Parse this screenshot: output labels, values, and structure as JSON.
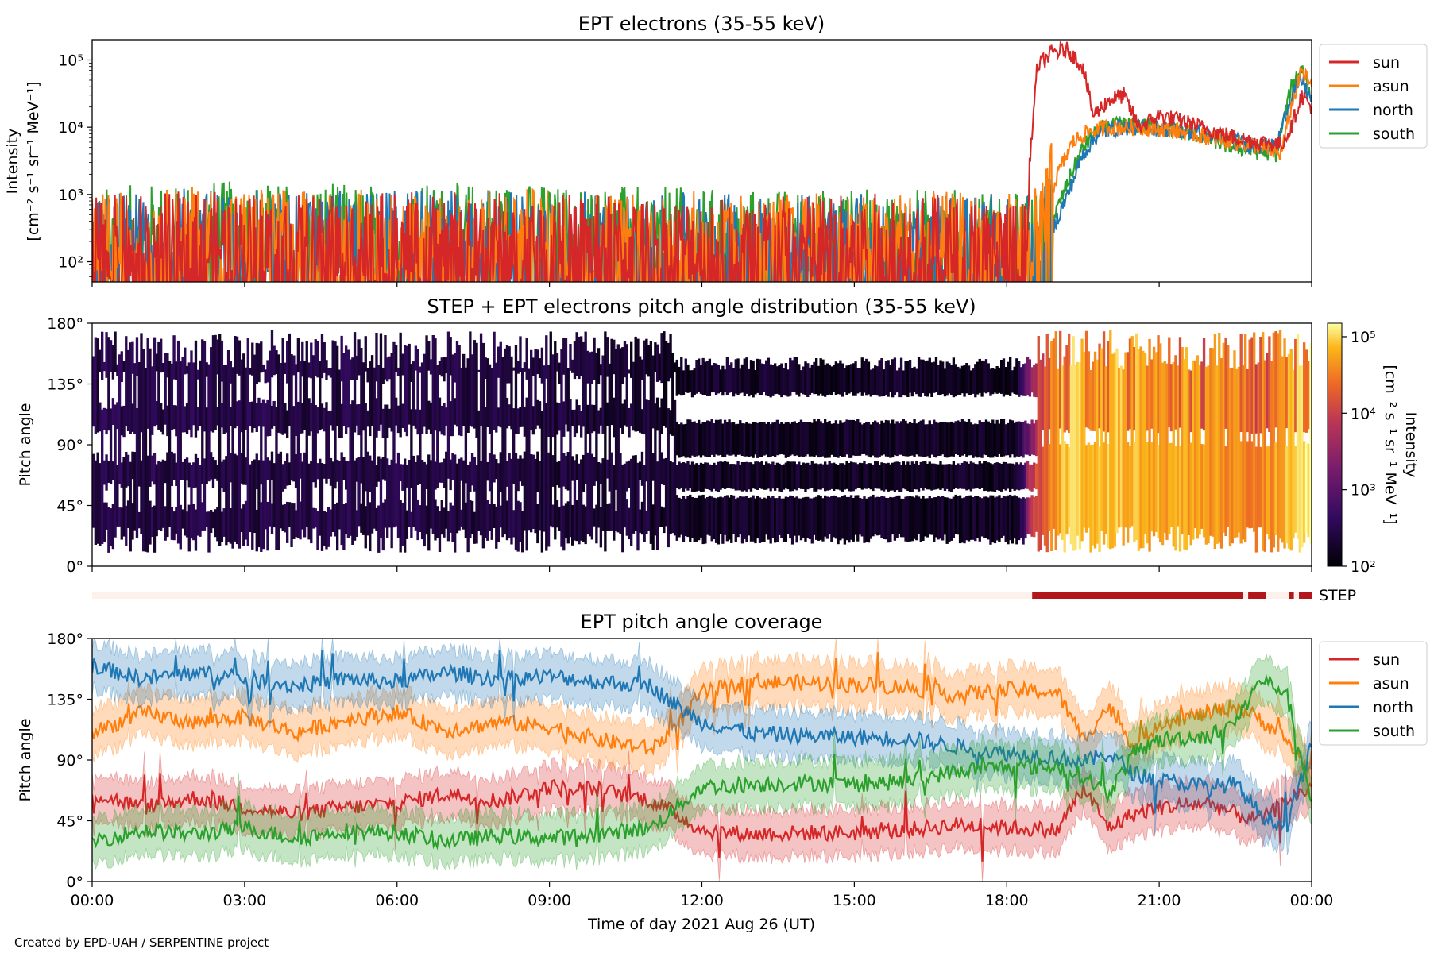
{
  "footer_credit": "Created by EPD-UAH / SERPENTINE project",
  "colors": {
    "sun": "#d62728",
    "asun": "#ff7f0e",
    "north": "#1f77b4",
    "south": "#2ca02c",
    "step_bar_on": "#b2181b",
    "step_bar_off": "#fdf1ec"
  },
  "chart_data": [
    {
      "type": "line",
      "title": "EPT electrons (35-55 keV)",
      "ylabel_line1": "Intensity",
      "ylabel_line2": "[cm⁻² s⁻¹ sr⁻¹ MeV⁻¹]",
      "yscale": "log",
      "ylim": [
        50,
        200000
      ],
      "yticks": [
        {
          "value": 100,
          "label": "10²"
        },
        {
          "value": 1000,
          "label": "10³"
        },
        {
          "value": 10000,
          "label": "10⁴"
        },
        {
          "value": 100000,
          "label": "10⁵"
        }
      ],
      "xlim_hours": [
        0,
        24
      ],
      "legend_position": "right",
      "legend": [
        "sun",
        "asun",
        "north",
        "south"
      ],
      "series": [
        {
          "name": "sun",
          "color": "#d62728",
          "points": [
            [
              0,
              150
            ],
            [
              2,
              180
            ],
            [
              4,
              160
            ],
            [
              6,
              170
            ],
            [
              8,
              180
            ],
            [
              10,
              160
            ],
            [
              12,
              150
            ],
            [
              14,
              160
            ],
            [
              16,
              170
            ],
            [
              18,
              140
            ],
            [
              18.4,
              130
            ],
            [
              18.45,
              3000
            ],
            [
              18.6,
              80000
            ],
            [
              18.9,
              130000
            ],
            [
              19.2,
              140000
            ],
            [
              19.5,
              80000
            ],
            [
              19.7,
              15000
            ],
            [
              20,
              25000
            ],
            [
              20.3,
              30000
            ],
            [
              20.6,
              10000
            ],
            [
              21,
              15000
            ],
            [
              21.5,
              12000
            ],
            [
              22,
              9000
            ],
            [
              22.5,
              7000
            ],
            [
              23,
              6000
            ],
            [
              23.4,
              5500
            ],
            [
              23.6,
              10000
            ],
            [
              23.8,
              30000
            ],
            [
              24,
              20000
            ]
          ]
        },
        {
          "name": "asun",
          "color": "#ff7f0e",
          "points": [
            [
              0,
              170
            ],
            [
              2,
              210
            ],
            [
              4,
              200
            ],
            [
              6,
              190
            ],
            [
              8,
              200
            ],
            [
              10,
              190
            ],
            [
              12,
              180
            ],
            [
              14,
              170
            ],
            [
              16,
              180
            ],
            [
              18,
              170
            ],
            [
              18.5,
              160
            ],
            [
              18.8,
              600
            ],
            [
              19,
              2000
            ],
            [
              19.3,
              6000
            ],
            [
              19.6,
              8500
            ],
            [
              20,
              10000
            ],
            [
              20.5,
              10000
            ],
            [
              21,
              9500
            ],
            [
              21.5,
              8500
            ],
            [
              22,
              7000
            ],
            [
              22.5,
              6000
            ],
            [
              23,
              5000
            ],
            [
              23.4,
              4000
            ],
            [
              23.6,
              20000
            ],
            [
              23.8,
              70000
            ],
            [
              24,
              40000
            ]
          ]
        },
        {
          "name": "north",
          "color": "#1f77b4",
          "points": [
            [
              0,
              160
            ],
            [
              2,
              200
            ],
            [
              4,
              190
            ],
            [
              6,
              180
            ],
            [
              8,
              190
            ],
            [
              10,
              180
            ],
            [
              12,
              170
            ],
            [
              14,
              165
            ],
            [
              16,
              170
            ],
            [
              18,
              160
            ],
            [
              18.6,
              150
            ],
            [
              18.9,
              300
            ],
            [
              19.2,
              1000
            ],
            [
              19.5,
              4000
            ],
            [
              19.8,
              8000
            ],
            [
              20.2,
              10000
            ],
            [
              20.8,
              10000
            ],
            [
              21.3,
              9000
            ],
            [
              21.8,
              8000
            ],
            [
              22.3,
              6500
            ],
            [
              22.8,
              5500
            ],
            [
              23.3,
              5000
            ],
            [
              23.6,
              30000
            ],
            [
              23.8,
              50000
            ],
            [
              24,
              25000
            ]
          ]
        },
        {
          "name": "south",
          "color": "#2ca02c",
          "points": [
            [
              0,
              200
            ],
            [
              2,
              260
            ],
            [
              4,
              240
            ],
            [
              6,
              230
            ],
            [
              8,
              240
            ],
            [
              10,
              220
            ],
            [
              12,
              200
            ],
            [
              14,
              190
            ],
            [
              16,
              200
            ],
            [
              18,
              190
            ],
            [
              18.6,
              170
            ],
            [
              18.9,
              400
            ],
            [
              19.2,
              1500
            ],
            [
              19.5,
              5000
            ],
            [
              19.8,
              9000
            ],
            [
              20.2,
              11000
            ],
            [
              20.8,
              10500
            ],
            [
              21.3,
              9000
            ],
            [
              21.8,
              7500
            ],
            [
              22.3,
              5500
            ],
            [
              22.8,
              4500
            ],
            [
              23.3,
              4000
            ],
            [
              23.6,
              40000
            ],
            [
              23.8,
              80000
            ],
            [
              24,
              30000
            ]
          ]
        }
      ]
    },
    {
      "type": "heatmap",
      "title": "STEP + EPT electrons pitch angle distribution (35-55 keV)",
      "ylabel": "Pitch angle",
      "ylim": [
        0,
        180
      ],
      "yticks": [
        "0°",
        "45°",
        "90°",
        "135°",
        "180°"
      ],
      "xlim_hours": [
        0,
        24
      ],
      "colorbar": {
        "scale": "log",
        "range": [
          100,
          150000
        ],
        "ticks": [
          {
            "value": 100,
            "label": "10²"
          },
          {
            "value": 1000,
            "label": "10³"
          },
          {
            "value": 10000,
            "label": "10⁴"
          },
          {
            "value": 100000,
            "label": "10⁵"
          }
        ],
        "label_line1": "Intensity",
        "label_line2": "[cm⁻² s⁻¹ sr⁻¹ MeV⁻¹]",
        "colormap": "inferno"
      },
      "intensity_profile_hours": [
        [
          0,
          300
        ],
        [
          4,
          280
        ],
        [
          8,
          250
        ],
        [
          10,
          230
        ],
        [
          11.5,
          180
        ],
        [
          14,
          170
        ],
        [
          18.2,
          160
        ],
        [
          18.5,
          3000
        ],
        [
          19,
          20000
        ],
        [
          19.5,
          30000
        ],
        [
          20,
          25000
        ],
        [
          21,
          20000
        ],
        [
          22,
          15000
        ],
        [
          23,
          12000
        ],
        [
          24,
          40000
        ]
      ]
    },
    {
      "type": "bar",
      "label": "STEP",
      "step_on_intervals_hours": [
        [
          18.5,
          22.65
        ],
        [
          22.75,
          23.1
        ],
        [
          23.55,
          23.65
        ],
        [
          23.75,
          24
        ]
      ],
      "xlim_hours": [
        0,
        24
      ]
    },
    {
      "type": "line",
      "title": "EPT pitch angle coverage",
      "ylabel": "Pitch angle",
      "ylim": [
        0,
        180
      ],
      "yticks": [
        "0°",
        "45°",
        "90°",
        "135°",
        "180°"
      ],
      "xticks": [
        "00:00",
        "03:00",
        "06:00",
        "09:00",
        "12:00",
        "15:00",
        "18:00",
        "21:00",
        "00:00"
      ],
      "xlabel": "Time of day 2021 Aug 26 (UT)",
      "legend_position": "right",
      "legend": [
        "sun",
        "asun",
        "north",
        "south"
      ],
      "series": [
        {
          "name": "sun",
          "color": "#d62728",
          "points": [
            [
              0,
              65
            ],
            [
              1,
              55
            ],
            [
              2,
              62
            ],
            [
              3,
              55
            ],
            [
              4,
              50
            ],
            [
              5,
              55
            ],
            [
              6,
              58
            ],
            [
              7,
              65
            ],
            [
              8,
              60
            ],
            [
              9,
              70
            ],
            [
              10,
              68
            ],
            [
              11,
              60
            ],
            [
              11.5,
              50
            ],
            [
              12,
              38
            ],
            [
              13,
              35
            ],
            [
              14,
              36
            ],
            [
              15,
              36
            ],
            [
              16,
              38
            ],
            [
              17,
              42
            ],
            [
              18,
              40
            ],
            [
              19,
              38
            ],
            [
              19.5,
              70
            ],
            [
              20,
              40
            ],
            [
              20.5,
              50
            ],
            [
              21,
              55
            ],
            [
              22,
              58
            ],
            [
              22.5,
              50
            ],
            [
              23,
              45
            ],
            [
              23.5,
              60
            ],
            [
              24,
              70
            ]
          ]
        },
        {
          "name": "asun",
          "color": "#ff7f0e",
          "points": [
            [
              0,
              110
            ],
            [
              1,
              125
            ],
            [
              2,
              118
            ],
            [
              3,
              122
            ],
            [
              4,
              110
            ],
            [
              5,
              120
            ],
            [
              6,
              125
            ],
            [
              7,
              112
            ],
            [
              8,
              118
            ],
            [
              9,
              115
            ],
            [
              10,
              105
            ],
            [
              11,
              98
            ],
            [
              11.5,
              115
            ],
            [
              12,
              140
            ],
            [
              13,
              148
            ],
            [
              14,
              147
            ],
            [
              15,
              146
            ],
            [
              16,
              144
            ],
            [
              17,
              138
            ],
            [
              18,
              142
            ],
            [
              19,
              140
            ],
            [
              19.5,
              105
            ],
            [
              20,
              130
            ],
            [
              20.5,
              100
            ],
            [
              21,
              118
            ],
            [
              22,
              125
            ],
            [
              22.5,
              130
            ],
            [
              23,
              120
            ],
            [
              23.5,
              105
            ],
            [
              24,
              80
            ]
          ]
        },
        {
          "name": "north",
          "color": "#1f77b4",
          "points": [
            [
              0,
              160
            ],
            [
              1,
              150
            ],
            [
              2,
              155
            ],
            [
              3,
              150
            ],
            [
              4,
              145
            ],
            [
              5,
              150
            ],
            [
              6,
              148
            ],
            [
              7,
              155
            ],
            [
              8,
              150
            ],
            [
              9,
              152
            ],
            [
              10,
              148
            ],
            [
              11,
              145
            ],
            [
              11.5,
              130
            ],
            [
              12,
              118
            ],
            [
              13,
              110
            ],
            [
              14,
              108
            ],
            [
              15,
              107
            ],
            [
              16,
              106
            ],
            [
              17,
              100
            ],
            [
              18,
              95
            ],
            [
              19,
              92
            ],
            [
              19.5,
              88
            ],
            [
              20,
              95
            ],
            [
              20.5,
              80
            ],
            [
              21,
              75
            ],
            [
              22,
              70
            ],
            [
              22.5,
              72
            ],
            [
              23,
              50
            ],
            [
              23.5,
              40
            ],
            [
              24,
              100
            ]
          ]
        },
        {
          "name": "south",
          "color": "#2ca02c",
          "points": [
            [
              0,
              30
            ],
            [
              1,
              38
            ],
            [
              2,
              35
            ],
            [
              3,
              40
            ],
            [
              4,
              32
            ],
            [
              5,
              38
            ],
            [
              6,
              36
            ],
            [
              7,
              30
            ],
            [
              8,
              34
            ],
            [
              9,
              32
            ],
            [
              10,
              35
            ],
            [
              11,
              40
            ],
            [
              11.5,
              55
            ],
            [
              12,
              70
            ],
            [
              13,
              72
            ],
            [
              14,
              73
            ],
            [
              15,
              72
            ],
            [
              16,
              74
            ],
            [
              17,
              82
            ],
            [
              18,
              85
            ],
            [
              19,
              85
            ],
            [
              19.5,
              78
            ],
            [
              20,
              65
            ],
            [
              20.5,
              95
            ],
            [
              21,
              105
            ],
            [
              22,
              108
            ],
            [
              22.5,
              118
            ],
            [
              23,
              150
            ],
            [
              23.5,
              140
            ],
            [
              24,
              60
            ]
          ]
        }
      ]
    }
  ]
}
